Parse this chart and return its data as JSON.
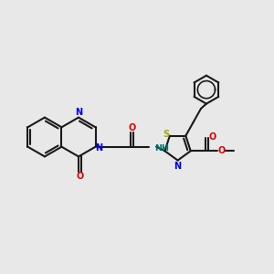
{
  "bg_color": "#e8e8e8",
  "bond_color": "#1a1a1a",
  "N_color": "#0000ee",
  "O_color": "#dd0000",
  "S_color": "#aaaa00",
  "NH_color": "#007070",
  "lw": 1.5,
  "figsize": [
    3.0,
    3.0
  ],
  "dpi": 100,
  "xlim": [
    0,
    10
  ],
  "ylim": [
    0,
    10
  ]
}
